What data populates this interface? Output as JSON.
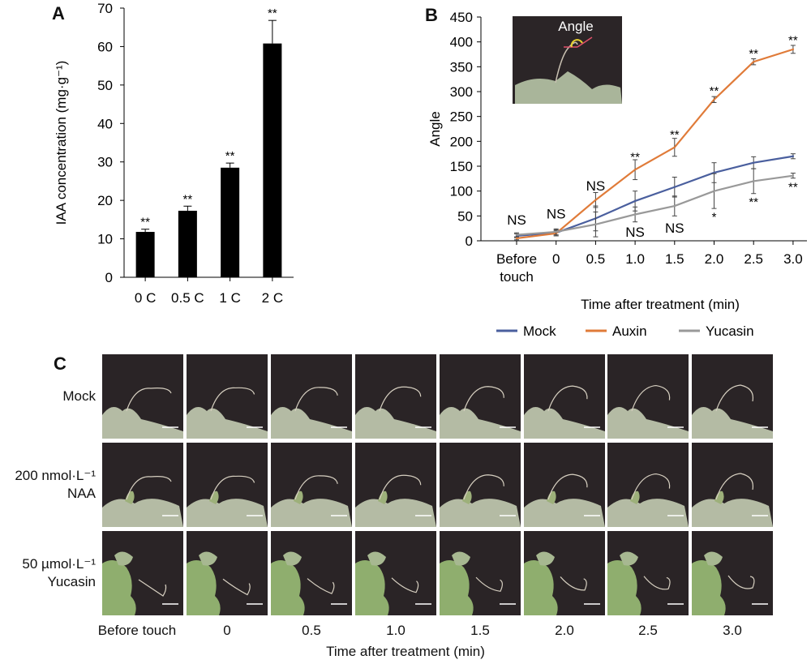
{
  "panels": {
    "a_letter": "A",
    "b_letter": "B",
    "c_letter": "C"
  },
  "chart_data": [
    {
      "type": "bar",
      "panel": "A",
      "categories": [
        "0 C",
        "0.5 C",
        "1 C",
        "2 C"
      ],
      "values": [
        11.8,
        17.3,
        28.5,
        60.8
      ],
      "errors": [
        0.7,
        1.2,
        1.2,
        6.0
      ],
      "annotations": [
        "**",
        "**",
        "**",
        "**"
      ],
      "ylabel": "IAA  concentration (mg·g⁻¹)",
      "ylim": [
        0,
        70
      ],
      "yticks": [
        "0",
        "10",
        "20",
        "30",
        "40",
        "50",
        "60",
        "70"
      ],
      "bar_color": "#000000",
      "grid": false
    },
    {
      "type": "line",
      "panel": "B",
      "x": [
        "Before touch",
        "0",
        "0.5",
        "1.0",
        "1.5",
        "2.0",
        "2.5",
        "3.0"
      ],
      "x_tick_lines": [
        [
          "Before",
          "touch"
        ],
        [
          "0"
        ],
        [
          "0.5"
        ],
        [
          "1.0"
        ],
        [
          "1.5"
        ],
        [
          "2.0"
        ],
        [
          "2.5"
        ],
        [
          "3.0"
        ]
      ],
      "xlabel": "Time after treatment (min)",
      "ylabel": "Angle",
      "ylim": [
        0,
        450
      ],
      "yticks": [
        "0",
        "50",
        "100",
        "150",
        "200",
        "250",
        "300",
        "350",
        "400",
        "450"
      ],
      "inset_label": "Angle",
      "legend_position": "bottom",
      "series": [
        {
          "name": "Mock",
          "color": "#4a5f9e",
          "values": [
            10,
            16,
            45,
            80,
            108,
            137,
            157,
            170
          ],
          "errors": [
            4,
            6,
            25,
            20,
            20,
            20,
            12,
            5
          ]
        },
        {
          "name": "Auxin",
          "color": "#e07b39",
          "values": [
            5,
            15,
            82,
            143,
            188,
            284,
            360,
            385
          ],
          "errors": [
            3,
            5,
            15,
            20,
            18,
            6,
            6,
            8
          ]
        },
        {
          "name": "Yucasin",
          "color": "#999999",
          "values": [
            12,
            18,
            33,
            53,
            70,
            100,
            120,
            131
          ],
          "errors": [
            4,
            6,
            25,
            15,
            20,
            35,
            25,
            5
          ]
        }
      ],
      "annotations": [
        {
          "text": "NS",
          "x": "Before touch",
          "y": 42
        },
        {
          "text": "NS",
          "x": "0",
          "y": 55
        },
        {
          "text": "NS",
          "x": "0.5",
          "y": 111
        },
        {
          "text": "**",
          "x": "1.0",
          "y": 170
        },
        {
          "text": "NS",
          "x": "1.0",
          "y": 18
        },
        {
          "text": "**",
          "x": "1.5",
          "y": 215
        },
        {
          "text": "NS",
          "x": "1.5",
          "y": 26
        },
        {
          "text": "**",
          "x": "2.0",
          "y": 303
        },
        {
          "text": "*",
          "x": "2.0",
          "y": 50
        },
        {
          "text": "**",
          "x": "2.5",
          "y": 378
        },
        {
          "text": "**",
          "x": "2.5",
          "y": 80
        },
        {
          "text": "**",
          "x": "3.0",
          "y": 405
        },
        {
          "text": "**",
          "x": "3.0",
          "y": 110
        }
      ]
    }
  ],
  "panel_c": {
    "rows": [
      {
        "label_lines": [
          "Mock"
        ]
      },
      {
        "label_lines": [
          "200 nmol·L⁻¹",
          "NAA"
        ]
      },
      {
        "label_lines": [
          "50 µmol·L⁻¹",
          "Yucasin"
        ]
      }
    ],
    "times": [
      "Before touch",
      "0",
      "0.5",
      "1.0",
      "1.5",
      "2.0",
      "2.5",
      "3.0"
    ],
    "xlabel": "Time after treatment (min)"
  }
}
